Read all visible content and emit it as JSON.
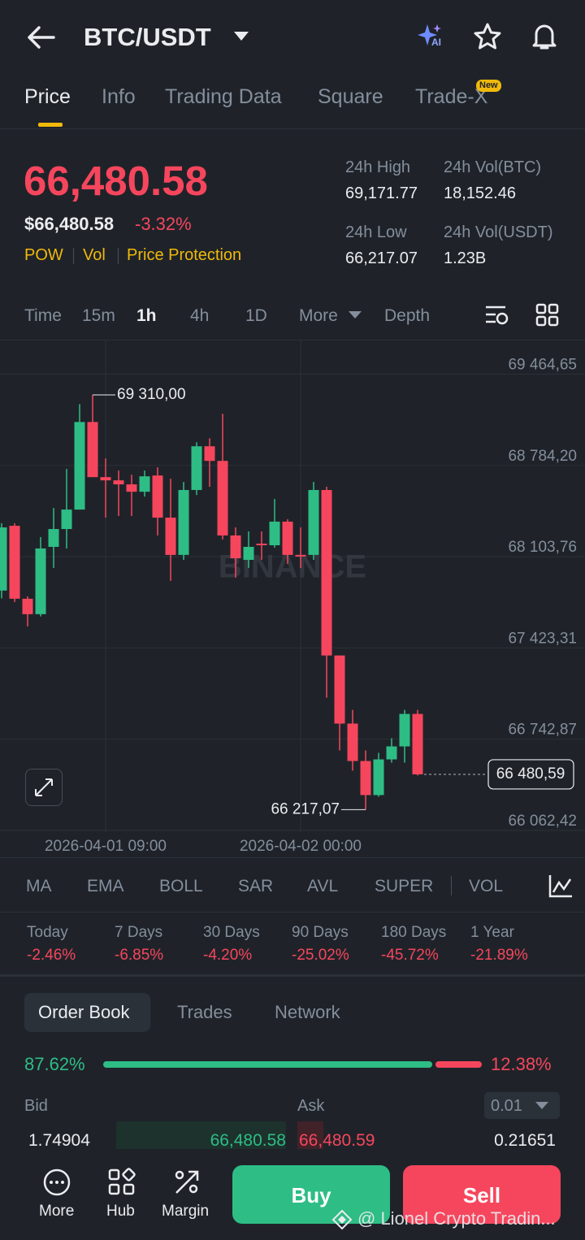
{
  "header": {
    "title": "BTC/USDT",
    "ai": "AI"
  },
  "tabs": [
    "Price",
    "Info",
    "Trading Data",
    "Square",
    "Trade-X"
  ],
  "new_badge": "New",
  "price": {
    "last": "66,480.58",
    "usd": "$66,480.58",
    "change": "-3.32%",
    "tags": [
      "POW",
      "Vol",
      "Price Protection"
    ]
  },
  "stats": [
    {
      "label": "24h High",
      "value": "69,171.77"
    },
    {
      "label": "24h Vol(BTC)",
      "value": "18,152.46"
    },
    {
      "label": "24h Low",
      "value": "66,217.07"
    },
    {
      "label": "24h Vol(USDT)",
      "value": "1.23B"
    }
  ],
  "intervals": [
    "Time",
    "15m",
    "1h",
    "4h",
    "1D",
    "More",
    "Depth"
  ],
  "chart": {
    "type": "candlestick",
    "watermark": "BINANCE",
    "up_color": "#2ebd85",
    "down_color": "#f6465d",
    "ylim": [
      66050,
      69710
    ],
    "yticks": [
      {
        "value": 69464.65,
        "label": "69 464,65"
      },
      {
        "value": 68784.2,
        "label": "68 784,20"
      },
      {
        "value": 68103.76,
        "label": "68 103,76"
      },
      {
        "value": 67423.31,
        "label": "67 423,31"
      },
      {
        "value": 66742.87,
        "label": "66 742,87"
      },
      {
        "value": 66062.42,
        "label": "66 062,42"
      }
    ],
    "xticks": [
      {
        "value": 8,
        "label": "2026-04-01 09:00"
      },
      {
        "value": 23,
        "label": "2026-04-02 00:00"
      }
    ],
    "high_label": "69 310,00",
    "low_label": "66 217,07",
    "last_label": "66 480,59",
    "candles": [
      {
        "open": 67851,
        "high": 68353,
        "low": 67793,
        "close": 68322
      },
      {
        "open": 68334,
        "high": 68353,
        "low": 67766,
        "close": 67790
      },
      {
        "open": 67790,
        "high": 67808,
        "low": 67584,
        "close": 67675
      },
      {
        "open": 67675,
        "high": 68250,
        "low": 67658,
        "close": 68165
      },
      {
        "open": 68177,
        "high": 68467,
        "low": 68020,
        "close": 68310
      },
      {
        "open": 68310,
        "high": 68758,
        "low": 68165,
        "close": 68455
      },
      {
        "open": 68455,
        "high": 69241,
        "low": 68455,
        "close": 69108
      },
      {
        "open": 69108,
        "high": 69310,
        "low": 68697,
        "close": 68697
      },
      {
        "open": 68697,
        "high": 68836,
        "low": 68395,
        "close": 68673
      },
      {
        "open": 68673,
        "high": 68746,
        "low": 68407,
        "close": 68643
      },
      {
        "open": 68643,
        "high": 68715,
        "low": 68407,
        "close": 68588
      },
      {
        "open": 68588,
        "high": 68746,
        "low": 68552,
        "close": 68703
      },
      {
        "open": 68709,
        "high": 68770,
        "low": 68262,
        "close": 68395
      },
      {
        "open": 68395,
        "high": 68685,
        "low": 67923,
        "close": 68117
      },
      {
        "open": 68117,
        "high": 68661,
        "low": 68080,
        "close": 68601
      },
      {
        "open": 68601,
        "high": 68957,
        "low": 68564,
        "close": 68927
      },
      {
        "open": 68927,
        "high": 68987,
        "low": 68625,
        "close": 68818
      },
      {
        "open": 68818,
        "high": 69169,
        "low": 68232,
        "close": 68262
      },
      {
        "open": 68262,
        "high": 68322,
        "low": 67947,
        "close": 68092
      },
      {
        "open": 68080,
        "high": 68292,
        "low": 68020,
        "close": 68177
      },
      {
        "open": 68201,
        "high": 68292,
        "low": 68080,
        "close": 68189
      },
      {
        "open": 68189,
        "high": 68534,
        "low": 68171,
        "close": 68365
      },
      {
        "open": 68365,
        "high": 68383,
        "low": 68050,
        "close": 68117
      },
      {
        "open": 68117,
        "high": 68322,
        "low": 68020,
        "close": 68105
      },
      {
        "open": 68117,
        "high": 68661,
        "low": 68080,
        "close": 68601
      },
      {
        "open": 68601,
        "high": 68625,
        "low": 67052,
        "close": 67367
      },
      {
        "open": 67367,
        "high": 67367,
        "low": 66659,
        "close": 66859
      },
      {
        "open": 66859,
        "high": 66961,
        "low": 66508,
        "close": 66580
      },
      {
        "open": 66580,
        "high": 66659,
        "low": 66217.07,
        "close": 66326
      },
      {
        "open": 66326,
        "high": 66641,
        "low": 66314,
        "close": 66592
      },
      {
        "open": 66592,
        "high": 66750,
        "low": 66568,
        "close": 66689
      },
      {
        "open": 66689,
        "high": 66961,
        "low": 66568,
        "close": 66931
      },
      {
        "open": 66931,
        "high": 66961,
        "low": 66472,
        "close": 66480.59
      }
    ]
  },
  "indicators": [
    "MA",
    "EMA",
    "BOLL",
    "SAR",
    "AVL",
    "SUPER",
    "VOL"
  ],
  "periods": [
    {
      "label": "Today",
      "value": "-2.46%"
    },
    {
      "label": "7 Days",
      "value": "-6.85%"
    },
    {
      "label": "30 Days",
      "value": "-4.20%"
    },
    {
      "label": "90 Days",
      "value": "-25.02%"
    },
    {
      "label": "180 Days",
      "value": "-45.72%"
    },
    {
      "label": "1 Year",
      "value": "-21.89%"
    }
  ],
  "book_tabs": [
    "Order Book",
    "Trades",
    "Network"
  ],
  "ratio": {
    "bid": "87.62%",
    "ask": "12.38%"
  },
  "book": {
    "bid_label": "Bid",
    "ask_label": "Ask",
    "step": "0.01",
    "row": [
      "1.74904",
      "66,480.58",
      "66,480.59",
      "0.21651"
    ]
  },
  "nav": [
    "More",
    "Hub",
    "Margin"
  ],
  "buy": "Buy",
  "sell": "Sell",
  "watermark": "@ Lionel Crypto Tradin..."
}
